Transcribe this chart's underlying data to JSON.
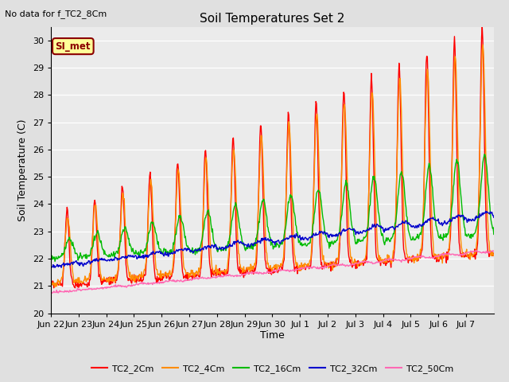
{
  "title": "Soil Temperatures Set 2",
  "ylabel": "Soil Temperature (C)",
  "xlabel": "Time",
  "top_left_note": "No data for f_TC2_8Cm",
  "annotation_label": "SI_met",
  "ylim": [
    20.0,
    30.5
  ],
  "yticks": [
    20.0,
    21.0,
    22.0,
    23.0,
    24.0,
    25.0,
    26.0,
    27.0,
    28.0,
    29.0,
    30.0
  ],
  "background_color": "#e0e0e0",
  "plot_bg_color": "#ebebeb",
  "series": {
    "TC2_2Cm": {
      "color": "#ff0000",
      "lw": 1.0
    },
    "TC2_4Cm": {
      "color": "#ff8c00",
      "lw": 1.0
    },
    "TC2_16Cm": {
      "color": "#00bb00",
      "lw": 1.0
    },
    "TC2_32Cm": {
      "color": "#0000cc",
      "lw": 1.0
    },
    "TC2_50Cm": {
      "color": "#ff69b4",
      "lw": 1.0
    }
  },
  "xtick_labels": [
    "Jun 22",
    "Jun 23",
    "Jun 24",
    "Jun 25",
    "Jun 26",
    "Jun 27",
    "Jun 28",
    "Jun 29",
    "Jun 30",
    "Jul 1",
    "Jul 2",
    "Jul 3",
    "Jul 4",
    "Jul 5",
    "Jul 6",
    "Jul 7"
  ],
  "n_days": 16
}
